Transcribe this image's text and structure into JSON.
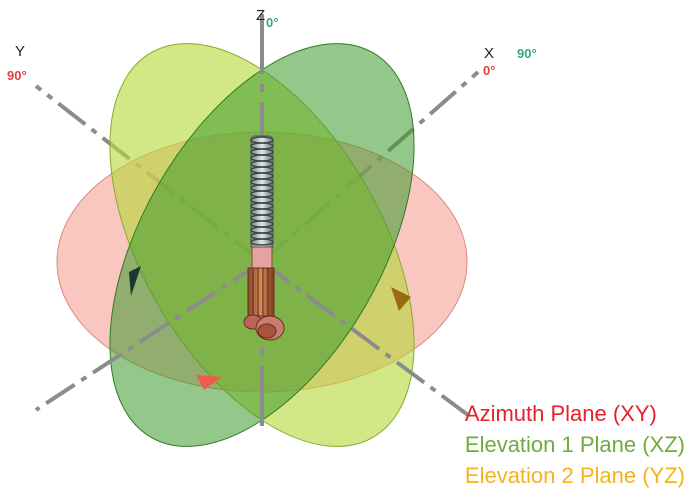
{
  "axes": {
    "z": {
      "name": "Z",
      "angle": "0°"
    },
    "y": {
      "name": "Y",
      "angle": "90°"
    },
    "x": {
      "name": "X",
      "angle_xz": "90°",
      "angle_xy": "0°"
    }
  },
  "legend": [
    {
      "label": "Azimuth Plane (XY)",
      "color": "#e8202a"
    },
    {
      "label": "Elevation 1 Plane (XZ)",
      "color": "#6fab3f"
    },
    {
      "label": "Elevation 2 Plane (YZ)",
      "color": "#f5b31b"
    }
  ],
  "colors": {
    "azimuth_fill": "#f5a39a",
    "elevation1_fill": "#3d9a2c",
    "elevation2_fill": "#b6d93a",
    "axis_line": "#8c8c8c",
    "z_angle_text": "#3aa57a",
    "y_angle_text": "#e04040",
    "x_angle_green_text": "#3aa57a",
    "x_angle_red_text": "#e04040"
  }
}
